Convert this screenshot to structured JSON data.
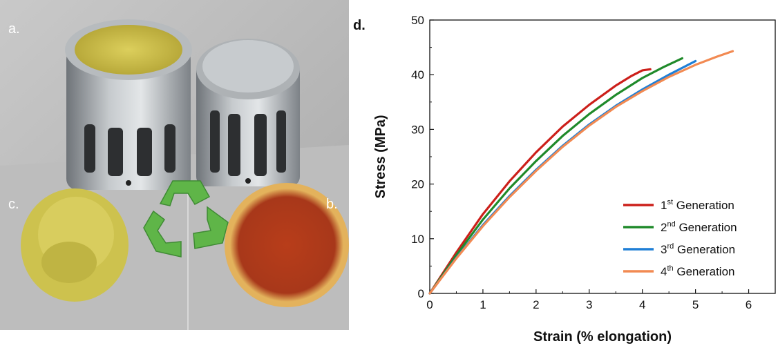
{
  "panels": {
    "a": "a.",
    "b": "b.",
    "c": "c.",
    "d": "d."
  },
  "photo": {
    "description_icons": [
      "metal-mold-filled-icon",
      "metal-mold-closed-icon",
      "recycle-icon",
      "powder-pile-icon",
      "red-disc-icon"
    ],
    "colors": {
      "background": "#b9b9b9",
      "powder": "#cfc24a",
      "disc": "#b3401c",
      "disc_rim": "#e3b25c",
      "recycle": "#5fb548",
      "metal": "#9ea3a7"
    }
  },
  "chart_data": {
    "type": "line",
    "xlabel": "Strain (% elongation)",
    "ylabel": "Stress (MPa)",
    "xlim": [
      0,
      6.5
    ],
    "ylim": [
      0,
      50
    ],
    "xticks": [
      0,
      1,
      2,
      3,
      4,
      5,
      6
    ],
    "yticks": [
      0,
      10,
      20,
      30,
      40,
      50
    ],
    "legend_position": "bottom-right",
    "series": [
      {
        "name_prefix": "1",
        "name_sup": "st",
        "name_suffix": " Generation",
        "color": "#cc1f1a",
        "x": [
          0,
          0.5,
          1.0,
          1.5,
          2.0,
          2.5,
          3.0,
          3.5,
          3.8,
          4.0,
          4.15
        ],
        "y": [
          0,
          7.5,
          14.5,
          20.5,
          25.8,
          30.5,
          34.5,
          38.0,
          39.8,
          40.8,
          41.0
        ]
      },
      {
        "name_prefix": "2",
        "name_sup": "nd",
        "name_suffix": " Generation",
        "color": "#1f8a2a",
        "x": [
          0,
          0.5,
          1.0,
          1.5,
          2.0,
          2.5,
          3.0,
          3.5,
          4.0,
          4.4,
          4.75
        ],
        "y": [
          0,
          7.0,
          13.5,
          19.2,
          24.2,
          28.8,
          32.8,
          36.3,
          39.4,
          41.4,
          43.0
        ]
      },
      {
        "name_prefix": "3",
        "name_sup": "rd",
        "name_suffix": " Generation",
        "color": "#1f7fd6",
        "x": [
          0,
          0.5,
          1.0,
          1.5,
          2.0,
          2.5,
          3.0,
          3.5,
          4.0,
          4.5,
          5.0
        ],
        "y": [
          0,
          6.5,
          12.5,
          17.8,
          22.6,
          27.0,
          30.9,
          34.3,
          37.3,
          40.0,
          42.5
        ]
      },
      {
        "name_prefix": "4",
        "name_sup": "th",
        "name_suffix": " Generation",
        "color": "#f28a52",
        "x": [
          0,
          0.5,
          1.0,
          1.5,
          2.0,
          2.5,
          3.0,
          3.5,
          4.0,
          4.5,
          5.0,
          5.4,
          5.7
        ],
        "y": [
          0,
          6.4,
          12.3,
          17.6,
          22.4,
          26.8,
          30.7,
          34.1,
          37.0,
          39.6,
          41.8,
          43.3,
          44.3
        ]
      }
    ]
  }
}
